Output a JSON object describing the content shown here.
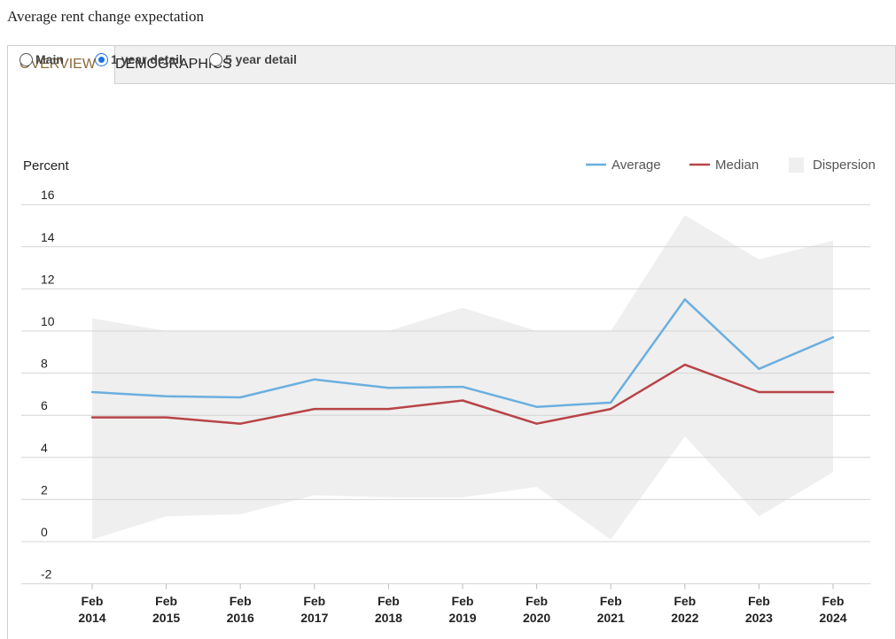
{
  "page": {
    "title": "Average rent change expectation"
  },
  "tabs": [
    {
      "label": "OVERVIEW",
      "active": true
    },
    {
      "label": "DEMOGRAPHICS",
      "active": false
    }
  ],
  "radios": [
    {
      "label": "Main",
      "checked": false
    },
    {
      "label": "1 year detail",
      "checked": true
    },
    {
      "label": "5 year detail",
      "checked": false
    }
  ],
  "colors": {
    "average": "#6aafe0",
    "median": "#b84448",
    "dispersion": "#efefef",
    "grid": "#d4d4d4",
    "tab_active_text": "#8a6a3a",
    "radio_accent": "#1a73e8"
  },
  "chart_data": {
    "type": "line",
    "ylabel": "Percent",
    "ylim": [
      -2,
      16
    ],
    "y_ticks": [
      16,
      14,
      12,
      10,
      8,
      6,
      4,
      2,
      0,
      -2
    ],
    "grid": true,
    "legend_position": "top-right",
    "categories": [
      [
        "Feb",
        "2014"
      ],
      [
        "Feb",
        "2015"
      ],
      [
        "Feb",
        "2016"
      ],
      [
        "Feb",
        "2017"
      ],
      [
        "Feb",
        "2018"
      ],
      [
        "Feb",
        "2019"
      ],
      [
        "Feb",
        "2020"
      ],
      [
        "Feb",
        "2021"
      ],
      [
        "Feb",
        "2022"
      ],
      [
        "Feb",
        "2023"
      ],
      [
        "Feb",
        "2024"
      ]
    ],
    "series": [
      {
        "name": "Average",
        "type": "line",
        "color": "#6aafe0",
        "values": [
          7.1,
          6.9,
          6.85,
          7.7,
          7.3,
          7.35,
          6.4,
          6.6,
          11.5,
          8.2,
          9.7
        ]
      },
      {
        "name": "Median",
        "type": "line",
        "color": "#b84448",
        "values": [
          5.9,
          5.9,
          5.6,
          6.3,
          6.3,
          6.7,
          5.6,
          6.3,
          8.4,
          7.1,
          7.1
        ]
      },
      {
        "name": "Dispersion",
        "type": "area",
        "color": "#efefef",
        "upper": [
          10.6,
          10.0,
          10.0,
          10.0,
          10.0,
          11.1,
          10.0,
          10.0,
          15.5,
          13.4,
          14.3
        ],
        "lower": [
          0.1,
          1.2,
          1.3,
          2.2,
          2.1,
          2.1,
          2.6,
          0.1,
          5.0,
          1.2,
          3.3
        ]
      }
    ]
  }
}
